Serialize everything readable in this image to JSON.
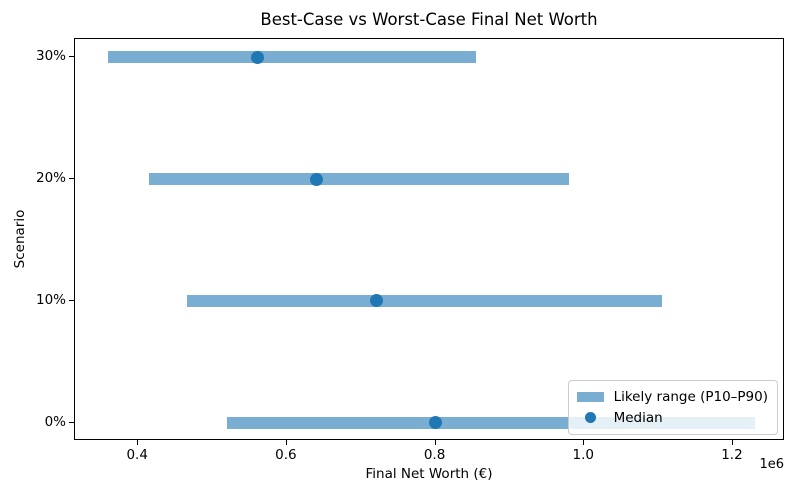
{
  "chart_data": {
    "type": "bar",
    "subtype": "horizontal-range-bars-with-median-dots",
    "title": "Best-Case vs Worst-Case Final Net Worth",
    "xlabel": "Final Net Worth (€)",
    "ylabel": "Scenario",
    "x_scale_offset_label": "1e6",
    "categories": [
      "0%",
      "10%",
      "20%",
      "30%"
    ],
    "series": [
      {
        "name": "Likely range (P10–P90)",
        "type": "range-bar",
        "p10": [
          520000,
          466000,
          415000,
          360000
        ],
        "p90": [
          1230000,
          1105000,
          980000,
          855000
        ]
      },
      {
        "name": "Median",
        "type": "scatter",
        "values": [
          800000,
          720000,
          640000,
          560000
        ]
      }
    ],
    "xlim": [
      315000,
      1270000
    ],
    "ylim": [
      -0.15,
      3.15
    ],
    "xticks": [
      400000,
      600000,
      800000,
      1000000,
      1200000
    ],
    "xtick_labels": [
      "0.4",
      "0.6",
      "0.8",
      "1.0",
      "1.2"
    ],
    "ytick_labels": [
      "0%",
      "10%",
      "20%",
      "30%"
    ],
    "grid": false,
    "legend": {
      "position": "lower right",
      "entries": [
        "Likely range (P10–P90)",
        "Median"
      ]
    },
    "colors": {
      "range_bar": "#79add2",
      "median_dot": "#1f77b4",
      "spine": "#000000",
      "text": "#000000"
    }
  }
}
